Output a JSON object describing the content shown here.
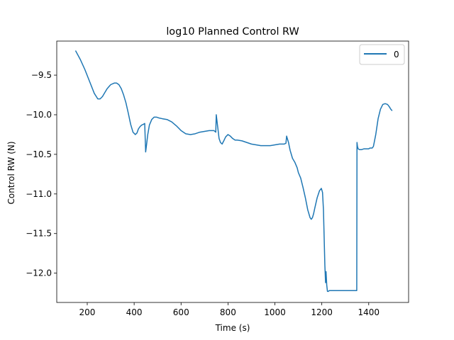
{
  "chart_data": {
    "type": "line",
    "title": "log10 Planned Control RW",
    "xlabel": "Time (s)",
    "ylabel": "Control RW (N)",
    "xlim": [
      70,
      1570
    ],
    "ylim": [
      -12.37,
      -9.07
    ],
    "xticks": [
      200,
      400,
      600,
      800,
      1000,
      1200,
      1400
    ],
    "yticks": [
      -12.0,
      -11.5,
      -11.0,
      -10.5,
      -10.0,
      -9.5
    ],
    "xtick_labels": [
      "200",
      "400",
      "600",
      "800",
      "1000",
      "1200",
      "1400"
    ],
    "ytick_labels": [
      "−12.0",
      "−11.5",
      "−11.0",
      "−10.5",
      "−10.0",
      "−9.5"
    ],
    "grid": false,
    "legend": {
      "position": "top-right",
      "entries": [
        "0"
      ]
    },
    "series": [
      {
        "name": "0",
        "color": "#1f77b4",
        "x": [
          150,
          170,
          190,
          210,
          230,
          245,
          255,
          265,
          275,
          285,
          300,
          315,
          325,
          335,
          345,
          355,
          365,
          375,
          385,
          395,
          405,
          412,
          418,
          425,
          432,
          440,
          445,
          449,
          452,
          458,
          465,
          475,
          485,
          495,
          505,
          520,
          540,
          560,
          580,
          600,
          620,
          640,
          660,
          680,
          700,
          720,
          740,
          748,
          750,
          752,
          758,
          762,
          768,
          775,
          782,
          790,
          800,
          810,
          820,
          830,
          840,
          860,
          880,
          900,
          920,
          940,
          960,
          980,
          1000,
          1020,
          1040,
          1047,
          1050,
          1053,
          1058,
          1065,
          1075,
          1085,
          1095,
          1100,
          1110,
          1120,
          1130,
          1140,
          1150,
          1155,
          1160,
          1165,
          1170,
          1180,
          1190,
          1198,
          1203,
          1207,
          1210,
          1213,
          1216,
          1218,
          1221,
          1224,
          1228,
          1232,
          1240,
          1260,
          1290,
          1320,
          1349,
          1350,
          1352,
          1355,
          1360,
          1370,
          1380,
          1390,
          1400,
          1405,
          1410,
          1415,
          1420,
          1430,
          1440,
          1450,
          1460,
          1470,
          1480,
          1488,
          1494,
          1500
        ],
        "y": [
          -9.19,
          -9.3,
          -9.43,
          -9.58,
          -9.73,
          -9.8,
          -9.8,
          -9.77,
          -9.72,
          -9.67,
          -9.62,
          -9.6,
          -9.6,
          -9.62,
          -9.67,
          -9.75,
          -9.85,
          -9.98,
          -10.12,
          -10.22,
          -10.25,
          -10.23,
          -10.18,
          -10.15,
          -10.13,
          -10.12,
          -10.11,
          -10.47,
          -10.4,
          -10.25,
          -10.13,
          -10.06,
          -10.03,
          -10.03,
          -10.04,
          -10.05,
          -10.06,
          -10.09,
          -10.14,
          -10.2,
          -10.24,
          -10.25,
          -10.24,
          -10.22,
          -10.21,
          -10.2,
          -10.2,
          -10.22,
          -10.0,
          -10.05,
          -10.2,
          -10.3,
          -10.35,
          -10.37,
          -10.33,
          -10.28,
          -10.25,
          -10.27,
          -10.3,
          -10.32,
          -10.32,
          -10.33,
          -10.35,
          -10.37,
          -10.38,
          -10.39,
          -10.39,
          -10.39,
          -10.38,
          -10.37,
          -10.37,
          -10.36,
          -10.27,
          -10.3,
          -10.35,
          -10.45,
          -10.55,
          -10.6,
          -10.67,
          -10.73,
          -10.8,
          -10.92,
          -11.05,
          -11.2,
          -11.3,
          -11.32,
          -11.3,
          -11.25,
          -11.18,
          -11.05,
          -10.96,
          -10.93,
          -10.98,
          -11.2,
          -11.55,
          -11.9,
          -12.12,
          -11.98,
          -12.15,
          -12.23,
          -12.23,
          -12.22,
          -12.22,
          -12.22,
          -12.22,
          -12.22,
          -12.22,
          -10.35,
          -10.4,
          -10.43,
          -10.44,
          -10.44,
          -10.43,
          -10.43,
          -10.43,
          -10.42,
          -10.42,
          -10.42,
          -10.4,
          -10.25,
          -10.05,
          -9.93,
          -9.87,
          -9.86,
          -9.87,
          -9.9,
          -9.93,
          -9.95
        ]
      }
    ]
  }
}
